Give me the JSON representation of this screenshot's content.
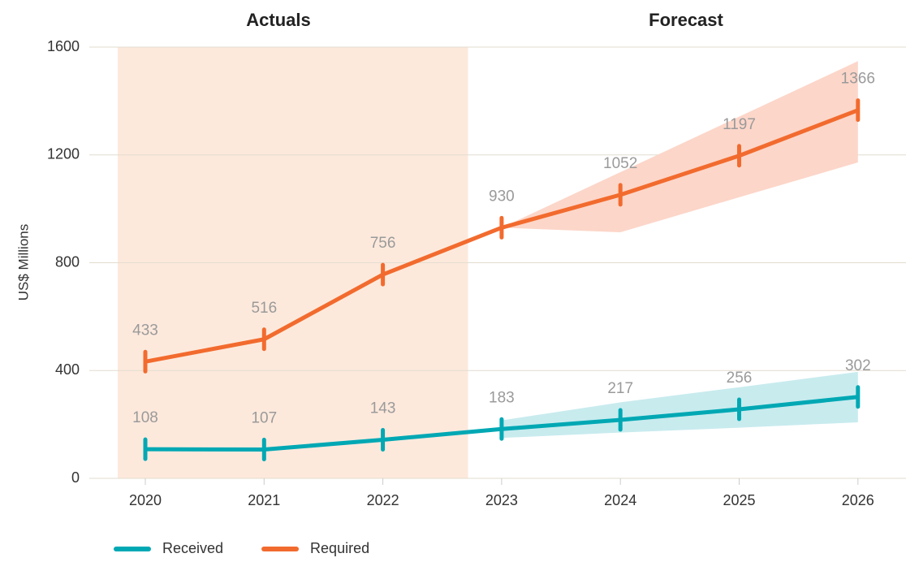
{
  "chart_data": {
    "type": "line",
    "region_labels": [
      "Actuals",
      "Forecast"
    ],
    "y_label": "US$ Millions",
    "categories": [
      "2020",
      "2021",
      "2022",
      "2023",
      "2024",
      "2025",
      "2026"
    ],
    "series": [
      {
        "name": "Received",
        "color": "#00a8b4",
        "band_color": "#c8ebee",
        "values": [
          108,
          107,
          143,
          183,
          217,
          256,
          302
        ],
        "upper": [
          null,
          null,
          null,
          215,
          282,
          338,
          395
        ],
        "lower": [
          null,
          null,
          null,
          150,
          170,
          188,
          208
        ]
      },
      {
        "name": "Required",
        "color": "#f26b2e",
        "band_color": "#fcd6c9",
        "values": [
          433,
          516,
          756,
          930,
          1052,
          1197,
          1366
        ],
        "upper": [
          null,
          null,
          null,
          930,
          1136,
          1342,
          1548
        ],
        "lower": [
          null,
          null,
          null,
          930,
          913,
          1043,
          1172
        ]
      }
    ],
    "ylim": [
      0,
      1600
    ],
    "yticks": [
      0,
      400,
      800,
      1200,
      1600
    ],
    "grid": true,
    "legend": "bottom-left"
  }
}
